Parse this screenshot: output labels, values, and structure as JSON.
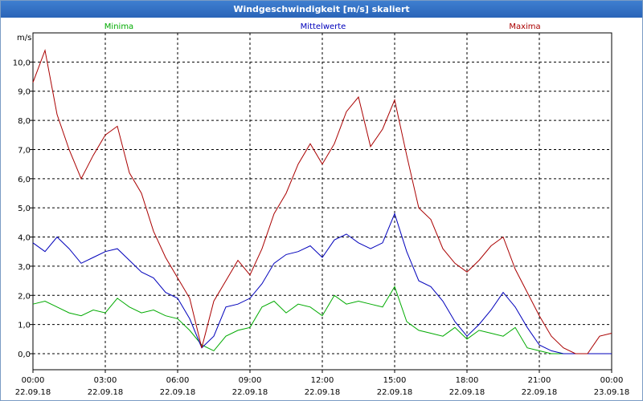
{
  "window": {
    "title": "Windgeschwindigkeit [m/s] skaliert"
  },
  "chart_data": {
    "type": "line",
    "title": "Windgeschwindigkeit [m/s] skaliert",
    "ylabel": "m/s",
    "xlabel": "",
    "ylim": [
      -0.55,
      11.0
    ],
    "xlim_hours": [
      0,
      24
    ],
    "yticks": [
      {
        "value": 0,
        "label": "0,0"
      },
      {
        "value": 1,
        "label": "1,0"
      },
      {
        "value": 2,
        "label": "2,0"
      },
      {
        "value": 3,
        "label": "3,0"
      },
      {
        "value": 4,
        "label": "4,0"
      },
      {
        "value": 5,
        "label": "5,0"
      },
      {
        "value": 6,
        "label": "6,0"
      },
      {
        "value": 7,
        "label": "7,0"
      },
      {
        "value": 8,
        "label": "8,0"
      },
      {
        "value": 9,
        "label": "9,0"
      },
      {
        "value": 10,
        "label": "10,0"
      }
    ],
    "xticks": [
      {
        "hour": 0,
        "time": "00:00",
        "date": "22.09.18"
      },
      {
        "hour": 3,
        "time": "03:00",
        "date": "22.09.18"
      },
      {
        "hour": 6,
        "time": "06:00",
        "date": "22.09.18"
      },
      {
        "hour": 9,
        "time": "09:00",
        "date": "22.09.18"
      },
      {
        "hour": 12,
        "time": "12:00",
        "date": "22.09.18"
      },
      {
        "hour": 15,
        "time": "15:00",
        "date": "22.09.18"
      },
      {
        "hour": 18,
        "time": "18:00",
        "date": "22.09.18"
      },
      {
        "hour": 21,
        "time": "21:00",
        "date": "22.09.18"
      },
      {
        "hour": 24,
        "time": "00:00",
        "date": "23.09.18"
      }
    ],
    "grid": true,
    "x_hours": [
      0,
      0.5,
      1,
      1.5,
      2,
      2.5,
      3,
      3.5,
      4,
      4.5,
      5,
      5.5,
      6,
      6.5,
      7,
      7.5,
      8,
      8.5,
      9,
      9.5,
      10,
      10.5,
      11,
      11.5,
      12,
      12.5,
      13,
      13.5,
      14,
      14.5,
      15,
      15.5,
      16,
      16.5,
      17,
      17.5,
      18,
      18.5,
      19,
      19.5,
      20,
      20.5,
      21,
      21.5,
      22,
      22.5,
      23,
      23.5,
      24
    ],
    "series": [
      {
        "name": "Minima",
        "color": "#00aa00",
        "values": [
          1.7,
          1.8,
          1.6,
          1.4,
          1.3,
          1.5,
          1.4,
          1.9,
          1.6,
          1.4,
          1.5,
          1.3,
          1.2,
          0.8,
          0.3,
          0.1,
          0.6,
          0.8,
          0.9,
          1.6,
          1.8,
          1.4,
          1.7,
          1.6,
          1.3,
          2.0,
          1.7,
          1.8,
          1.7,
          1.6,
          2.3,
          1.1,
          0.8,
          0.7,
          0.6,
          0.9,
          0.5,
          0.8,
          0.7,
          0.6,
          0.9,
          0.2,
          0.1,
          0,
          0,
          0,
          0,
          0,
          0
        ]
      },
      {
        "name": "Mittelwerte",
        "color": "#0000bb",
        "values": [
          3.8,
          3.5,
          4.0,
          3.6,
          3.1,
          3.3,
          3.5,
          3.6,
          3.2,
          2.8,
          2.6,
          2.1,
          1.9,
          1.2,
          0.2,
          0.6,
          1.6,
          1.7,
          1.9,
          2.4,
          3.1,
          3.4,
          3.5,
          3.7,
          3.3,
          3.9,
          4.1,
          3.8,
          3.6,
          3.8,
          4.8,
          3.5,
          2.5,
          2.3,
          1.8,
          1.1,
          0.6,
          1.0,
          1.5,
          2.1,
          1.6,
          0.9,
          0.3,
          0.1,
          0,
          0,
          0,
          0,
          0
        ]
      },
      {
        "name": "Maxima",
        "color": "#aa0000",
        "values": [
          9.3,
          10.4,
          8.2,
          7.0,
          6.0,
          6.8,
          7.5,
          7.8,
          6.2,
          5.5,
          4.2,
          3.3,
          2.6,
          1.9,
          0.2,
          1.8,
          2.5,
          3.2,
          2.7,
          3.6,
          4.8,
          5.5,
          6.5,
          7.2,
          6.5,
          7.2,
          8.3,
          8.8,
          7.1,
          7.7,
          8.7,
          6.8,
          5.0,
          4.6,
          3.6,
          3.1,
          2.8,
          3.2,
          3.7,
          4.0,
          2.9,
          2.1,
          1.3,
          0.6,
          0.2,
          0,
          0,
          0.6,
          0.7
        ]
      }
    ]
  }
}
